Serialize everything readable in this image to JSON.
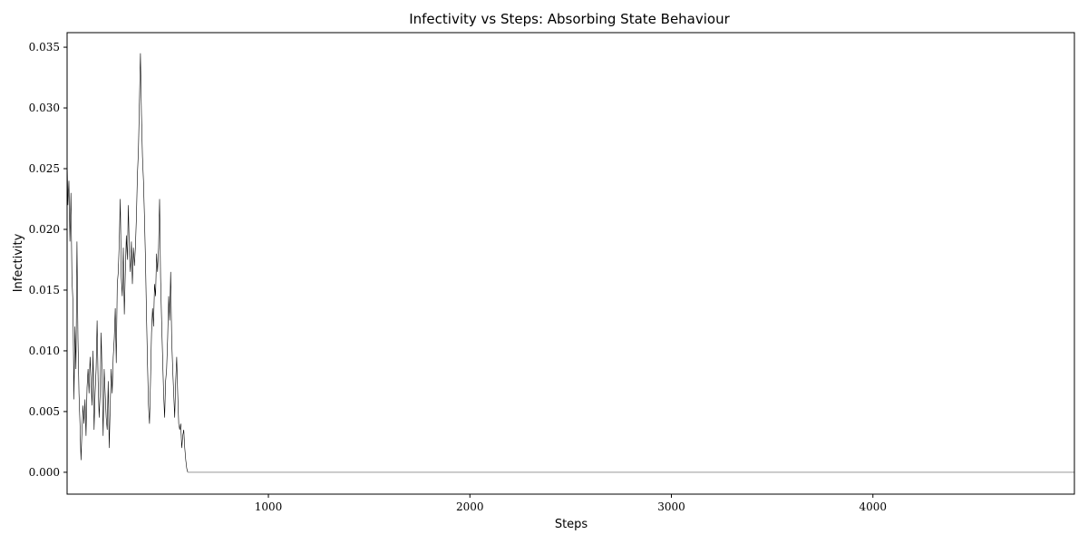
{
  "chart_data": {
    "type": "line",
    "title": "Infectivity vs Steps: Absorbing State Behaviour",
    "xlabel": "Steps",
    "ylabel": "Infectivity",
    "xlim": [
      1,
      5000
    ],
    "ylim": [
      -0.0018,
      0.0362
    ],
    "xticks": [
      1000,
      2000,
      3000,
      4000
    ],
    "xtick_labels": [
      "1000",
      "2000",
      "3000",
      "4000"
    ],
    "yticks": [
      0.0,
      0.005,
      0.01,
      0.015,
      0.02,
      0.025,
      0.03,
      0.035
    ],
    "ytick_labels": [
      "0.000",
      "0.005",
      "0.010",
      "0.015",
      "0.020",
      "0.025",
      "0.030",
      "0.035"
    ],
    "grid": false,
    "line_color": "#000000",
    "absorbed_line_color": "#999999",
    "series": [
      {
        "x": [
          1,
          5,
          10,
          15,
          20,
          25,
          30,
          35,
          40,
          45,
          50,
          55,
          60,
          65,
          70,
          75,
          80,
          85,
          90,
          95,
          100,
          105,
          110,
          115,
          120,
          125,
          130,
          135,
          140,
          145,
          150,
          155,
          160,
          165,
          170,
          175,
          180,
          185,
          190,
          195,
          200,
          205,
          210,
          215,
          220,
          225,
          230,
          235,
          240,
          245,
          250,
          255,
          260,
          265,
          270,
          275,
          280,
          285,
          290,
          295,
          300,
          305,
          310,
          315,
          320,
          325,
          330,
          335,
          340,
          345,
          350,
          355,
          360,
          365,
          370,
          375,
          380,
          385,
          390,
          395,
          400,
          405,
          410,
          415,
          420,
          425,
          430,
          435,
          440,
          445,
          450,
          455,
          460,
          465,
          470,
          475,
          480,
          485,
          490,
          495,
          500,
          505,
          510,
          515,
          520,
          525,
          530,
          535,
          540,
          545,
          550,
          555,
          560,
          565,
          570,
          575,
          580,
          585,
          590,
          595,
          600,
          605,
          2000,
          3000,
          4000,
          5000
        ],
        "y": [
          0.026,
          0.022,
          0.024,
          0.019,
          0.023,
          0.016,
          0.014,
          0.006,
          0.012,
          0.0085,
          0.019,
          0.011,
          0.0065,
          0.004,
          0.001,
          0.0035,
          0.0055,
          0.004,
          0.006,
          0.003,
          0.007,
          0.0085,
          0.0065,
          0.0095,
          0.0075,
          0.0055,
          0.01,
          0.0035,
          0.0065,
          0.0085,
          0.0125,
          0.0075,
          0.0045,
          0.0065,
          0.0115,
          0.0075,
          0.003,
          0.0085,
          0.0065,
          0.0045,
          0.0035,
          0.0075,
          0.002,
          0.0055,
          0.0085,
          0.0065,
          0.0095,
          0.011,
          0.0135,
          0.009,
          0.0155,
          0.0165,
          0.019,
          0.0225,
          0.016,
          0.0145,
          0.0185,
          0.013,
          0.0165,
          0.0195,
          0.0175,
          0.022,
          0.018,
          0.0165,
          0.019,
          0.0155,
          0.0185,
          0.017,
          0.0185,
          0.021,
          0.0245,
          0.0265,
          0.0305,
          0.0345,
          0.0295,
          0.026,
          0.024,
          0.021,
          0.0175,
          0.013,
          0.009,
          0.0055,
          0.004,
          0.0075,
          0.0115,
          0.0135,
          0.012,
          0.0155,
          0.0145,
          0.018,
          0.0165,
          0.0185,
          0.0225,
          0.016,
          0.0125,
          0.0095,
          0.0065,
          0.0045,
          0.0075,
          0.0085,
          0.011,
          0.0145,
          0.0125,
          0.0165,
          0.011,
          0.0085,
          0.0065,
          0.0045,
          0.0075,
          0.0095,
          0.0065,
          0.004,
          0.0035,
          0.004,
          0.002,
          0.003,
          0.0035,
          0.002,
          0.001,
          0.0003,
          0.0,
          0.0,
          0.0,
          0.0,
          0.0,
          0.0
        ]
      }
    ]
  }
}
